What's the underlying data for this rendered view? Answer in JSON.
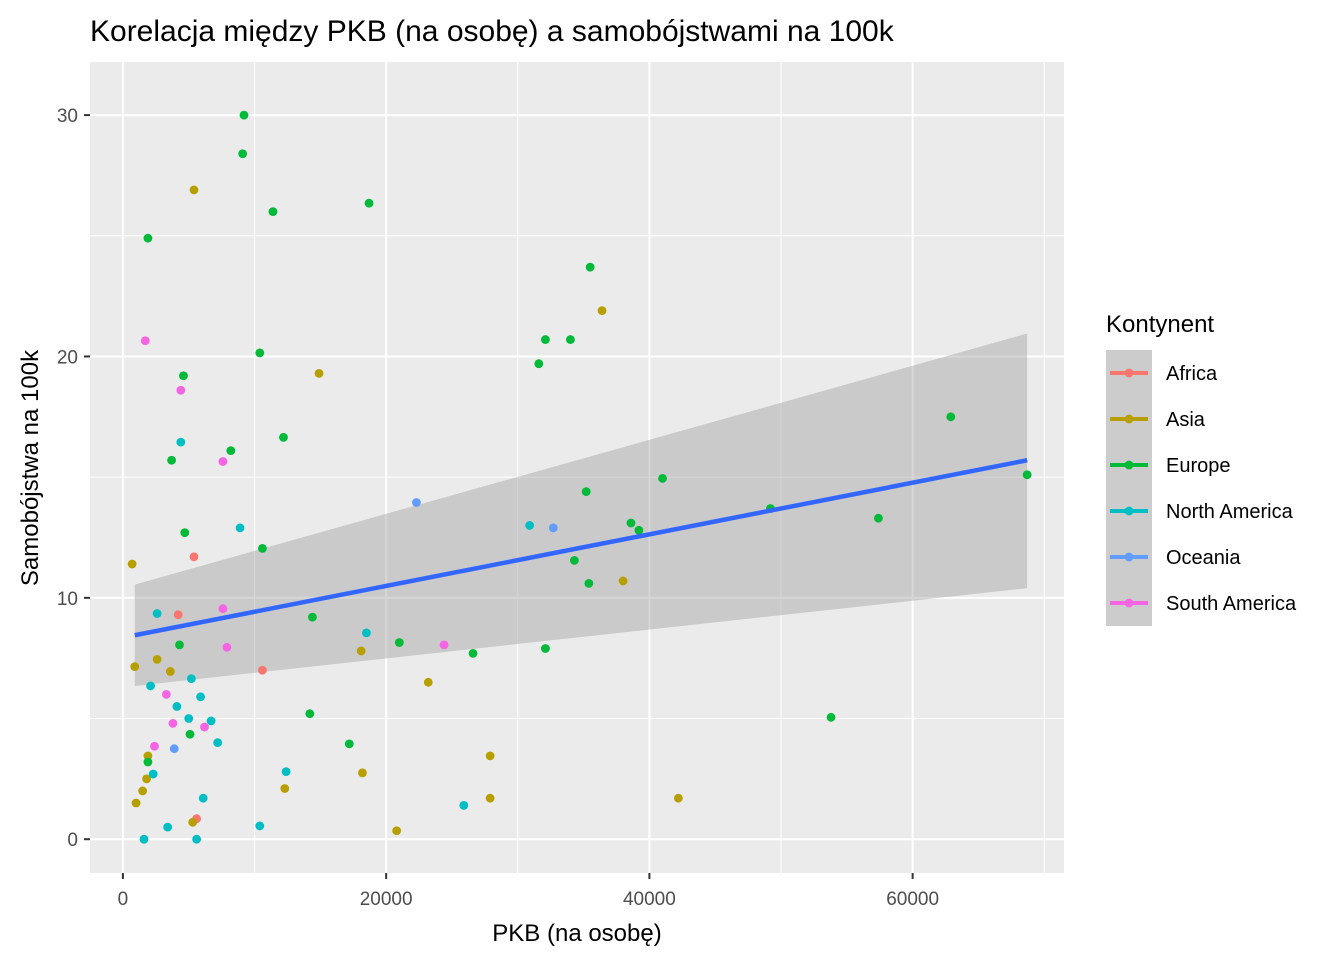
{
  "chart_data": {
    "type": "scatter",
    "title": "Korelacja między PKB (na osobę) a samobójstwami na 100k",
    "xlabel": "PKB (na osobę)",
    "ylabel": "Samobójstwa na 100k",
    "xlim": [
      -2500,
      71500
    ],
    "ylim": [
      -1.4,
      32.2
    ],
    "x_ticks": [
      0,
      20000,
      40000,
      60000
    ],
    "x_tick_labels": [
      "0",
      "20000",
      "40000",
      "60000"
    ],
    "y_ticks": [
      0,
      10,
      20,
      30
    ],
    "y_tick_labels": [
      "0",
      "10",
      "20",
      "30"
    ],
    "grid": true,
    "panel_background": "#ebebeb",
    "legend": {
      "title": "Kontynent",
      "placement": "right",
      "entries": [
        {
          "label": "Africa",
          "color": "#F8766D"
        },
        {
          "label": "Asia",
          "color": "#B79F00"
        },
        {
          "label": "Europe",
          "color": "#00BA38"
        },
        {
          "label": "North America",
          "color": "#00BFC4"
        },
        {
          "label": "Oceania",
          "color": "#619CFF"
        },
        {
          "label": "South America",
          "color": "#F564E3"
        }
      ]
    },
    "trend": {
      "method": "linear",
      "color": "#3366FF",
      "ribbon_color": "#999999",
      "x": [
        900,
        68700
      ],
      "y": [
        8.45,
        15.7
      ],
      "lower": [
        6.35,
        10.4
      ],
      "upper": [
        10.55,
        20.95
      ]
    },
    "series": [
      {
        "name": "Africa",
        "color": "#F8766D",
        "points": [
          [
            4200,
            9.3
          ],
          [
            5400,
            11.7
          ],
          [
            5600,
            0.85
          ],
          [
            10600,
            7.0
          ]
        ]
      },
      {
        "name": "Asia",
        "color": "#B79F00",
        "points": [
          [
            700,
            11.4
          ],
          [
            900,
            7.15
          ],
          [
            1000,
            1.5
          ],
          [
            1500,
            2.0
          ],
          [
            1800,
            2.5
          ],
          [
            1900,
            3.45
          ],
          [
            2600,
            7.45
          ],
          [
            3600,
            6.95
          ],
          [
            5300,
            0.7
          ],
          [
            5400,
            26.9
          ],
          [
            12300,
            2.1
          ],
          [
            14900,
            19.3
          ],
          [
            18100,
            7.8
          ],
          [
            18200,
            2.75
          ],
          [
            20800,
            0.35
          ],
          [
            23200,
            6.5
          ],
          [
            27900,
            3.45
          ],
          [
            27900,
            1.7
          ],
          [
            36400,
            21.9
          ],
          [
            38000,
            10.7
          ],
          [
            42200,
            1.7
          ]
        ]
      },
      {
        "name": "Europe",
        "color": "#00BA38",
        "points": [
          [
            1900,
            24.9
          ],
          [
            1900,
            3.2
          ],
          [
            3700,
            15.7
          ],
          [
            4300,
            8.05
          ],
          [
            4600,
            19.2
          ],
          [
            4700,
            12.7
          ],
          [
            5100,
            4.35
          ],
          [
            8200,
            16.1
          ],
          [
            9100,
            28.4
          ],
          [
            9200,
            30.0
          ],
          [
            10400,
            20.15
          ],
          [
            10600,
            12.05
          ],
          [
            11400,
            26.0
          ],
          [
            12200,
            16.65
          ],
          [
            14200,
            5.2
          ],
          [
            14400,
            9.2
          ],
          [
            17200,
            3.95
          ],
          [
            18700,
            26.35
          ],
          [
            21000,
            8.15
          ],
          [
            26600,
            7.7
          ],
          [
            31600,
            19.7
          ],
          [
            32100,
            20.7
          ],
          [
            32100,
            7.9
          ],
          [
            34000,
            20.7
          ],
          [
            34300,
            11.55
          ],
          [
            35200,
            14.4
          ],
          [
            35400,
            10.6
          ],
          [
            35500,
            23.7
          ],
          [
            38600,
            13.1
          ],
          [
            39200,
            12.8
          ],
          [
            41000,
            14.95
          ],
          [
            49200,
            13.7
          ],
          [
            53800,
            5.05
          ],
          [
            57400,
            13.3
          ],
          [
            62900,
            17.5
          ],
          [
            68700,
            15.1
          ]
        ]
      },
      {
        "name": "North America",
        "color": "#00BFC4",
        "points": [
          [
            1600,
            0.0
          ],
          [
            2100,
            6.35
          ],
          [
            2300,
            2.7
          ],
          [
            2600,
            9.35
          ],
          [
            3400,
            0.5
          ],
          [
            4100,
            5.5
          ],
          [
            4400,
            16.45
          ],
          [
            5000,
            5.0
          ],
          [
            5200,
            6.65
          ],
          [
            5600,
            0.0
          ],
          [
            5900,
            5.9
          ],
          [
            6100,
            1.7
          ],
          [
            6700,
            4.9
          ],
          [
            7200,
            4.0
          ],
          [
            8900,
            12.9
          ],
          [
            10400,
            0.55
          ],
          [
            12400,
            2.8
          ],
          [
            18500,
            8.55
          ],
          [
            25900,
            1.4
          ],
          [
            30900,
            13.0
          ]
        ]
      },
      {
        "name": "Oceania",
        "color": "#619CFF",
        "points": [
          [
            3900,
            3.75
          ],
          [
            22300,
            13.95
          ],
          [
            32700,
            12.9
          ]
        ]
      },
      {
        "name": "South America",
        "color": "#F564E3",
        "points": [
          [
            1700,
            20.65
          ],
          [
            2400,
            3.85
          ],
          [
            3300,
            6.0
          ],
          [
            3800,
            4.8
          ],
          [
            4400,
            18.6
          ],
          [
            6200,
            4.65
          ],
          [
            7600,
            9.55
          ],
          [
            7600,
            15.65
          ],
          [
            7900,
            7.95
          ],
          [
            24400,
            8.05
          ]
        ]
      }
    ]
  }
}
